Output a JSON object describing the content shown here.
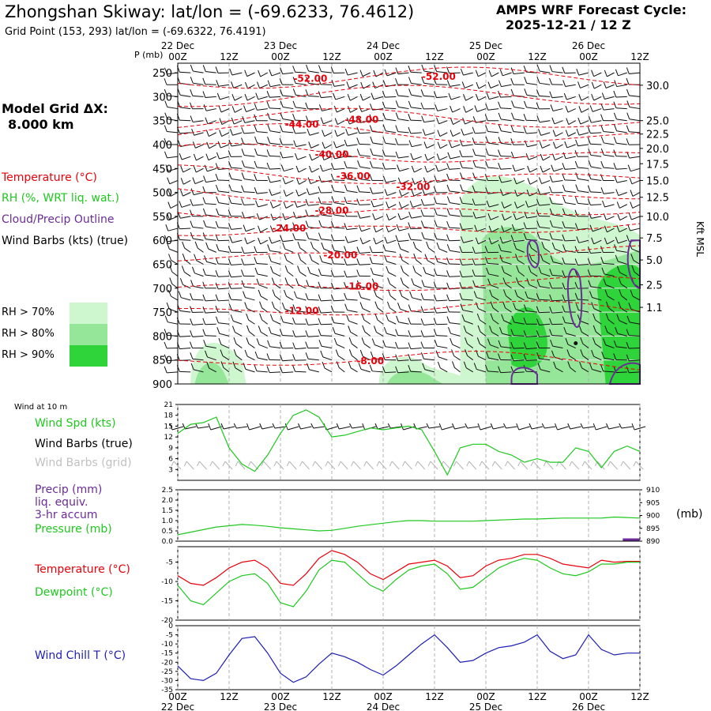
{
  "header": {
    "title": "Zhongshan Skiway:  lat/lon = (-69.6233, 76.4612)",
    "subtitle": "Grid Point (153, 293) lat/lon = (-69.6322, 76.4191)",
    "cycle_label": "AMPS WRF Forecast Cycle:",
    "cycle_value": "2025-12-21 / 12  Z"
  },
  "left_legend": {
    "model_grid_label": "Model Grid ΔX:",
    "model_grid_value": "8.000 km",
    "temperature": "Temperature (°C)",
    "rh": "RH (%, WRT liq. wat.)",
    "cloud": "Cloud/Precip Outline",
    "wind": "Wind Barbs (kts) (true)",
    "rh_levels": [
      "RH > 70%",
      "RH > 80%",
      "RH > 90%"
    ]
  },
  "colors": {
    "temperature": "#e8000a",
    "dewpoint": "#1ec81e",
    "windchill": "#1e1eb4",
    "cloud": "#6a2c96",
    "rh70": "#cef7cf",
    "rh80": "#95e699",
    "rh90": "#2fd43a",
    "wind_speed": "#1ec81e",
    "grid_barbs": "#b4b4b4"
  },
  "chart_data": [
    {
      "type": "heatmap",
      "name": "upper-air cross section",
      "ylabel": "P (mb)",
      "yticks": [
        250,
        300,
        350,
        400,
        450,
        500,
        550,
        600,
        650,
        700,
        750,
        800,
        850,
        900
      ],
      "ylim": [
        900,
        230
      ],
      "right_axis_label": "Kft MSL",
      "right_ticks": [
        "30.0",
        "25.0",
        "22.5",
        "20.0",
        "17.5",
        "15.0",
        "12.5",
        "10.0",
        "7.5",
        "5.0",
        "2.5",
        "1.1"
      ],
      "right_tick_pressures": [
        276,
        350,
        378,
        408,
        440,
        475,
        510,
        550,
        595,
        641,
        693,
        740
      ],
      "xticks_top": [
        "00Z",
        "12Z",
        "00Z",
        "12Z",
        "00Z",
        "12Z",
        "00Z",
        "12Z",
        "00Z",
        "12Z"
      ],
      "date_labels_top": [
        "22 Dec",
        "23 Dec",
        "24 Dec",
        "25 Dec",
        "26 Dec"
      ],
      "isotherm_labels": [
        {
          "label": "-52.00",
          "time": 31,
          "p": 262
        },
        {
          "label": "-52.00",
          "time": 61,
          "p": 258
        },
        {
          "label": "-48.00",
          "time": 43,
          "p": 348
        },
        {
          "label": "-44.00",
          "time": 29,
          "p": 358
        },
        {
          "label": "-40.00",
          "time": 36,
          "p": 421
        },
        {
          "label": "-36.00",
          "time": 41,
          "p": 466
        },
        {
          "label": "-32.00",
          "time": 55,
          "p": 488
        },
        {
          "label": "-28.00",
          "time": 36,
          "p": 538
        },
        {
          "label": "-24.00",
          "time": 26,
          "p": 575
        },
        {
          "label": "-20.00",
          "time": 38,
          "p": 631
        },
        {
          "label": "-16.00",
          "time": 43,
          "p": 696
        },
        {
          "label": "-12.00",
          "time": 29,
          "p": 747
        },
        {
          "label": "-8.00",
          "time": 45,
          "p": 852
        }
      ]
    },
    {
      "type": "line",
      "name": "wind speed",
      "ylabel": "Wind Spd (kts)",
      "yticks": [
        3,
        6,
        9,
        12,
        15,
        18,
        21
      ],
      "ylim": [
        0,
        21
      ],
      "x": [
        0,
        3,
        6,
        9,
        12,
        15,
        18,
        21,
        24,
        27,
        30,
        33,
        36,
        39,
        42,
        45,
        48,
        51,
        54,
        57,
        60,
        63,
        66,
        69,
        72,
        75,
        78,
        81,
        84,
        87,
        90,
        93,
        96,
        99,
        102,
        105,
        108
      ],
      "values": [
        13,
        15.5,
        16,
        17.5,
        9,
        4.5,
        2.5,
        7,
        13,
        18,
        19.5,
        17.5,
        12,
        12.5,
        13.5,
        14.5,
        14,
        14.5,
        15,
        14,
        8,
        1.5,
        9,
        10,
        10,
        8,
        7,
        5,
        6,
        5,
        5,
        9,
        8,
        3.5,
        8,
        9.5,
        8
      ]
    },
    {
      "type": "line",
      "name": "pressure and precip",
      "ylabel": "Pressure (mb)",
      "y_left_ticks": [
        0.0,
        0.5,
        1.0,
        1.5,
        2.0,
        2.5
      ],
      "y_right_ticks": [
        890,
        895,
        900,
        905,
        910
      ],
      "ylim": [
        890,
        910
      ],
      "x": [
        0,
        3,
        6,
        9,
        12,
        15,
        18,
        21,
        24,
        27,
        30,
        33,
        36,
        39,
        42,
        45,
        48,
        51,
        54,
        57,
        60,
        63,
        66,
        69,
        72,
        75,
        78,
        81,
        84,
        87,
        90,
        93,
        96,
        99,
        102,
        105,
        108
      ],
      "values": [
        892.5,
        893.5,
        894.5,
        895.5,
        896,
        896.5,
        896.2,
        895.8,
        895.2,
        894.8,
        894.4,
        894,
        894.2,
        895,
        895.8,
        896.4,
        897,
        897.6,
        898,
        898,
        897.8,
        897.8,
        897.8,
        897.8,
        898,
        898.2,
        898.4,
        898.6,
        898.6,
        898.8,
        899,
        899,
        899,
        899,
        899.4,
        899.2,
        899
      ],
      "precip_note": "3-hr accum"
    },
    {
      "type": "line",
      "name": "temperature and dewpoint",
      "yticks": [
        -20,
        -15,
        -10,
        -5
      ],
      "ylim": [
        -20,
        -1
      ],
      "x": [
        0,
        3,
        6,
        9,
        12,
        15,
        18,
        21,
        24,
        27,
        30,
        33,
        36,
        39,
        42,
        45,
        48,
        51,
        54,
        57,
        60,
        63,
        66,
        69,
        72,
        75,
        78,
        81,
        84,
        87,
        90,
        93,
        96,
        99,
        102,
        105,
        108
      ],
      "series": [
        {
          "name": "Temperature (°C)",
          "values": [
            -8.5,
            -10.5,
            -11,
            -9,
            -6.5,
            -5,
            -4.5,
            -6.5,
            -10.5,
            -11,
            -8,
            -4,
            -2,
            -3,
            -5,
            -8,
            -9.5,
            -7.5,
            -5.5,
            -5,
            -4.5,
            -6,
            -9,
            -8.5,
            -6,
            -4.5,
            -4,
            -3,
            -3,
            -4,
            -5.5,
            -6,
            -6.5,
            -4.5,
            -5,
            -4.8,
            -4.8
          ]
        },
        {
          "name": "Dewpoint (°C)",
          "values": [
            -11,
            -15,
            -16,
            -13,
            -10,
            -8.5,
            -8,
            -10.5,
            -15.5,
            -16.5,
            -12.5,
            -7,
            -4.5,
            -5,
            -8,
            -11,
            -12.5,
            -9.5,
            -7,
            -6,
            -5.5,
            -8,
            -12,
            -11.5,
            -9,
            -6.5,
            -5,
            -4,
            -4.5,
            -6.5,
            -8,
            -8.5,
            -7.5,
            -5.5,
            -5.5,
            -5,
            -5
          ]
        }
      ]
    },
    {
      "type": "line",
      "name": "wind chill",
      "ylabel": "Wind Chill T (°C)",
      "yticks": [
        -35,
        -30,
        -25,
        -20,
        -15,
        -10,
        -5,
        0
      ],
      "ylim": [
        -35,
        0
      ],
      "x": [
        0,
        3,
        6,
        9,
        12,
        15,
        18,
        21,
        24,
        27,
        30,
        33,
        36,
        39,
        42,
        45,
        48,
        51,
        54,
        57,
        60,
        63,
        66,
        69,
        72,
        75,
        78,
        81,
        84,
        87,
        90,
        93,
        96,
        99,
        102,
        105,
        108
      ],
      "values": [
        -22,
        -29,
        -30,
        -26,
        -16,
        -7,
        -6,
        -15,
        -26,
        -31,
        -28,
        -21,
        -15,
        -17,
        -20,
        -24,
        -27,
        -22,
        -16,
        -10,
        -5,
        -12,
        -20,
        -19,
        -15,
        -12,
        -11,
        -9,
        -5,
        -14,
        -18,
        -16,
        -5,
        -13,
        -16,
        -15,
        -15
      ]
    }
  ],
  "panels": {
    "wind10m": {
      "title": "Wind at 10 m",
      "speed_label": "Wind Spd (kts)",
      "barbs_true_label": "Wind Barbs (true)",
      "barbs_grid_label": "Wind Barbs (grid)"
    },
    "precip": {
      "label1": "Precip (mm)",
      "label2": "liq. equiv.",
      "label3": "3-hr accum",
      "pressure_label": "Pressure (mb)",
      "right_unit": "(mb)"
    },
    "temp": {
      "temp_label": "Temperature (°C)",
      "dew_label": "Dewpoint (°C)"
    },
    "chill": {
      "label": "Wind Chill T (°C)"
    }
  },
  "time_axis": {
    "ticks": [
      "00Z",
      "12Z",
      "00Z",
      "12Z",
      "00Z",
      "12Z",
      "00Z",
      "12Z",
      "00Z",
      "12Z"
    ],
    "dates": [
      "22 Dec",
      "23 Dec",
      "24 Dec",
      "25 Dec",
      "26 Dec"
    ]
  }
}
